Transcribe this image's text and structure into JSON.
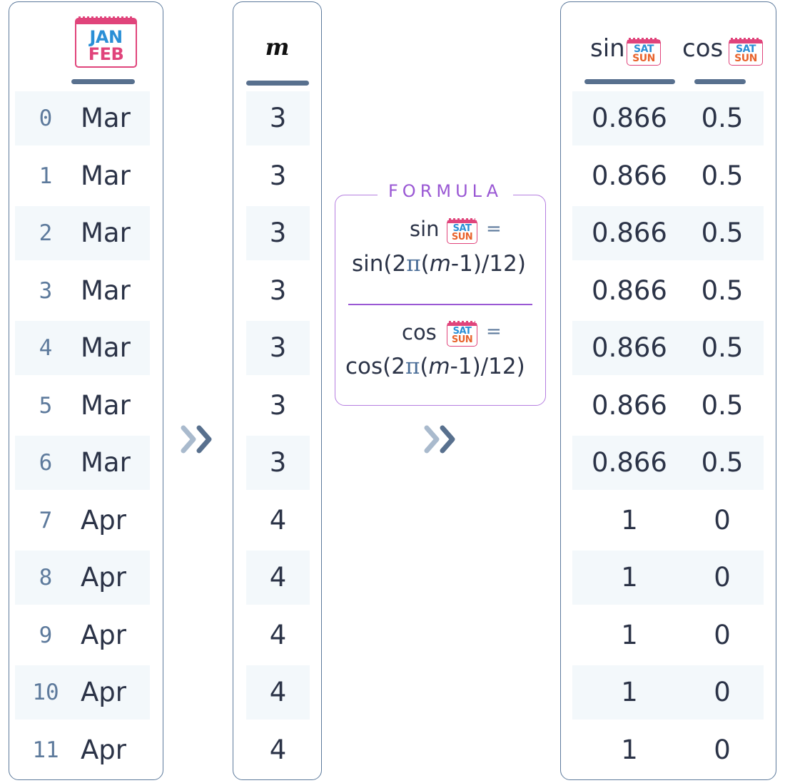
{
  "months_column": {
    "icon_top": "JAN",
    "icon_bottom": "FEB",
    "rows": [
      {
        "index": "0",
        "month": "Mar"
      },
      {
        "index": "1",
        "month": "Mar"
      },
      {
        "index": "2",
        "month": "Mar"
      },
      {
        "index": "3",
        "month": "Mar"
      },
      {
        "index": "4",
        "month": "Mar"
      },
      {
        "index": "5",
        "month": "Mar"
      },
      {
        "index": "6",
        "month": "Mar"
      },
      {
        "index": "7",
        "month": "Apr"
      },
      {
        "index": "8",
        "month": "Apr"
      },
      {
        "index": "9",
        "month": "Apr"
      },
      {
        "index": "10",
        "month": "Apr"
      },
      {
        "index": "11",
        "month": "Apr"
      }
    ]
  },
  "m_column": {
    "header": "m",
    "values": [
      "3",
      "3",
      "3",
      "3",
      "3",
      "3",
      "3",
      "4",
      "4",
      "4",
      "4",
      "4"
    ]
  },
  "formula": {
    "title": "FORMULA",
    "sin_label": "sin",
    "cos_label": "cos",
    "equals": "=",
    "sin_func": "sin(2",
    "cos_func": "cos(2",
    "pi": "π",
    "open": "(",
    "m": "m",
    "rest": "-1)/12)"
  },
  "sincos_column": {
    "sin_header": "sin",
    "cos_header": "cos",
    "icon_top": "SAT",
    "icon_bottom": "SUN",
    "rows": [
      {
        "sin": "0.866",
        "cos": "0.5"
      },
      {
        "sin": "0.866",
        "cos": "0.5"
      },
      {
        "sin": "0.866",
        "cos": "0.5"
      },
      {
        "sin": "0.866",
        "cos": "0.5"
      },
      {
        "sin": "0.866",
        "cos": "0.5"
      },
      {
        "sin": "0.866",
        "cos": "0.5"
      },
      {
        "sin": "0.866",
        "cos": "0.5"
      },
      {
        "sin": "1",
        "cos": "0"
      },
      {
        "sin": "1",
        "cos": "0"
      },
      {
        "sin": "1",
        "cos": "0"
      },
      {
        "sin": "1",
        "cos": "0"
      },
      {
        "sin": "1",
        "cos": "0"
      }
    ]
  },
  "colors": {
    "border": "#5d7a9c",
    "header_bar": "#58708e",
    "row_shade": "#f3f8fb",
    "formula_accent": "#9a58d4",
    "calendar_pink": "#e0447b",
    "calendar_blue": "#2a8fd6",
    "calendar_orange": "#e8632c"
  }
}
